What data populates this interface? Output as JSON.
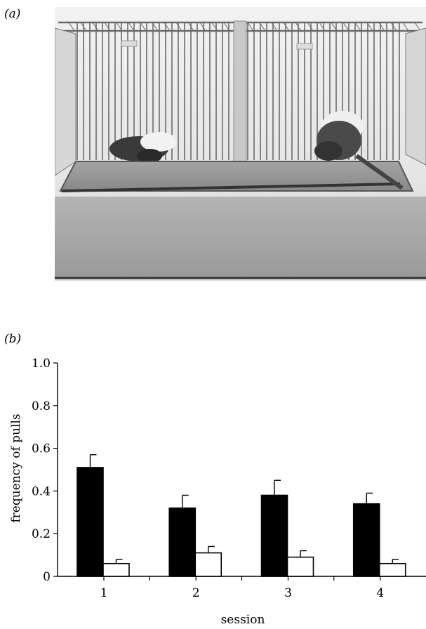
{
  "panels": {
    "a_label": "(a)",
    "b_label": "(b)"
  },
  "photo": {
    "description_icon": "cage-photo-icon",
    "colors": {
      "background": "#f4f4f4",
      "cage": "#6c6c6c",
      "table": "#a9a9a9",
      "tray": "#8c8c8c"
    }
  },
  "chart_data": {
    "type": "bar",
    "categories": [
      "1",
      "2",
      "3",
      "4"
    ],
    "series": [
      {
        "values": [
          0.51,
          0.32,
          0.38,
          0.34
        ],
        "errors": [
          0.06,
          0.06,
          0.07,
          0.05
        ],
        "fill": "#000000"
      },
      {
        "values": [
          0.06,
          0.11,
          0.09,
          0.06
        ],
        "errors": [
          0.02,
          0.03,
          0.03,
          0.02
        ],
        "fill": "#ffffff"
      }
    ],
    "title": "",
    "xlabel": "session",
    "ylabel": "frequency of pulls",
    "ylim": [
      0,
      1.0
    ],
    "yticks": [
      "0",
      "0.2",
      "0.4",
      "0.6",
      "0.8",
      "1.0"
    ],
    "ytick_values": [
      0,
      0.2,
      0.4,
      0.6,
      0.8,
      1.0
    ],
    "grid": false,
    "legend": "none"
  }
}
